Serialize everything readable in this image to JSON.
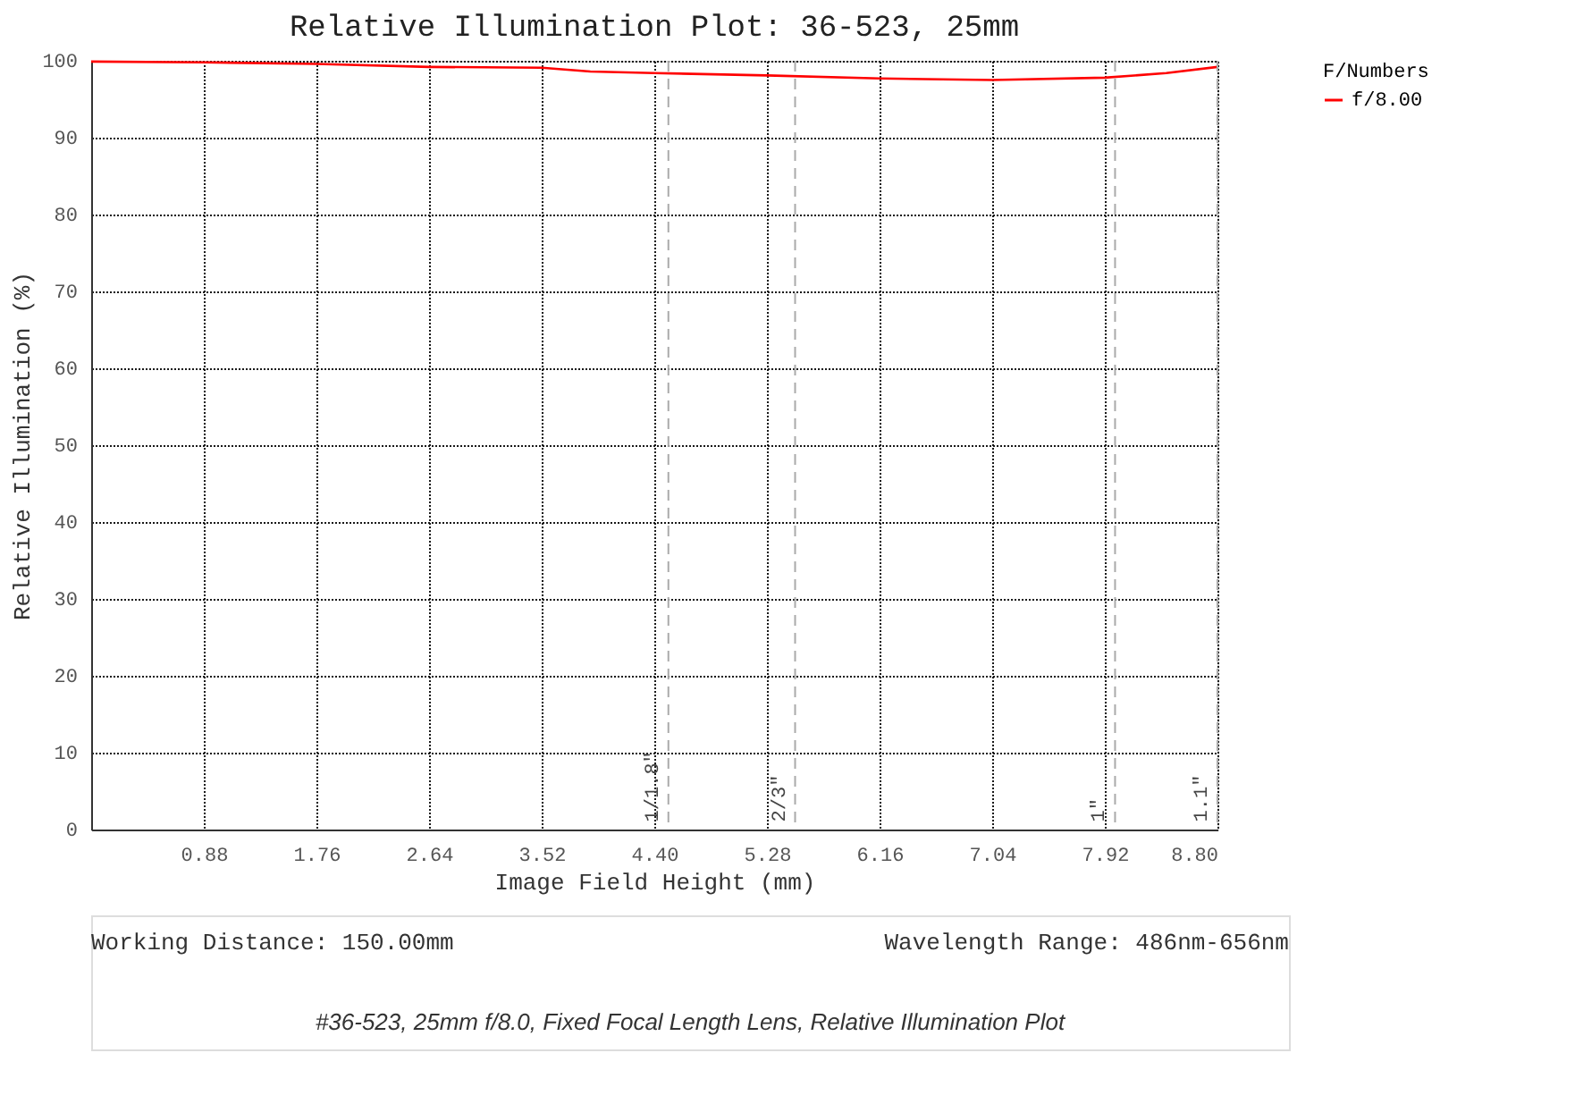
{
  "chart_data": {
    "type": "line",
    "title": "Relative Illumination Plot: 36-523, 25mm",
    "xlabel": "Image Field Height (mm)",
    "ylabel": "Relative Illumination (%)",
    "legend_title": "F/Numbers",
    "x": [
      0,
      0.88,
      1.76,
      2.64,
      3.52,
      3.9,
      4.4,
      5.28,
      6.16,
      7.04,
      7.92,
      8.4,
      8.8
    ],
    "series": [
      {
        "name": "f/8.00",
        "color": "#ff0000",
        "values": [
          99.9,
          99.8,
          99.6,
          99.2,
          99.1,
          98.6,
          98.4,
          98.1,
          97.7,
          97.5,
          97.8,
          98.4,
          99.2
        ]
      }
    ],
    "xlim": [
      0,
      8.8
    ],
    "ylim": [
      0,
      100
    ],
    "xticks": [
      0.88,
      1.76,
      2.64,
      3.52,
      {
        "value": 4.4,
        "label": "4.40"
      },
      5.28,
      6.16,
      7.04,
      7.92,
      {
        "value": 8.8,
        "label": "8.80"
      }
    ],
    "yticks": [
      0,
      10,
      20,
      30,
      40,
      50,
      60,
      70,
      80,
      90,
      100
    ],
    "ref_lines": [
      {
        "axis": "x",
        "value": 4.51,
        "color": "#aaaaaa",
        "line_style": "dashed"
      },
      {
        "axis": "x",
        "value": 5.5,
        "color": "#aaaaaa",
        "line_style": "dashed"
      },
      {
        "axis": "x",
        "value": 8.0,
        "color": "#aaaaaa",
        "line_style": "dashed"
      },
      {
        "axis": "x",
        "value": 8.8,
        "color": "#aaaaaa",
        "line_style": "dashed"
      }
    ],
    "grid": true,
    "legend": "right",
    "marker": "none",
    "line_style": "solid",
    "annotations": [
      "Working Distance: 150.00mm",
      "Wavelength Range: 486nm-656nm",
      "#36-523, 25mm f/8.0, Fixed Focal Length Lens, Relative Illumination Plot",
      {
        "text": "1/1.8\"",
        "x": 4.51,
        "y": 1
      },
      {
        "text": "2/3\"",
        "x": 5.5,
        "y": 1
      },
      {
        "text": "1\"",
        "x": 8.0,
        "y": 1
      },
      {
        "text": "1.1\"",
        "x": 8.8,
        "y": 1
      }
    ]
  }
}
